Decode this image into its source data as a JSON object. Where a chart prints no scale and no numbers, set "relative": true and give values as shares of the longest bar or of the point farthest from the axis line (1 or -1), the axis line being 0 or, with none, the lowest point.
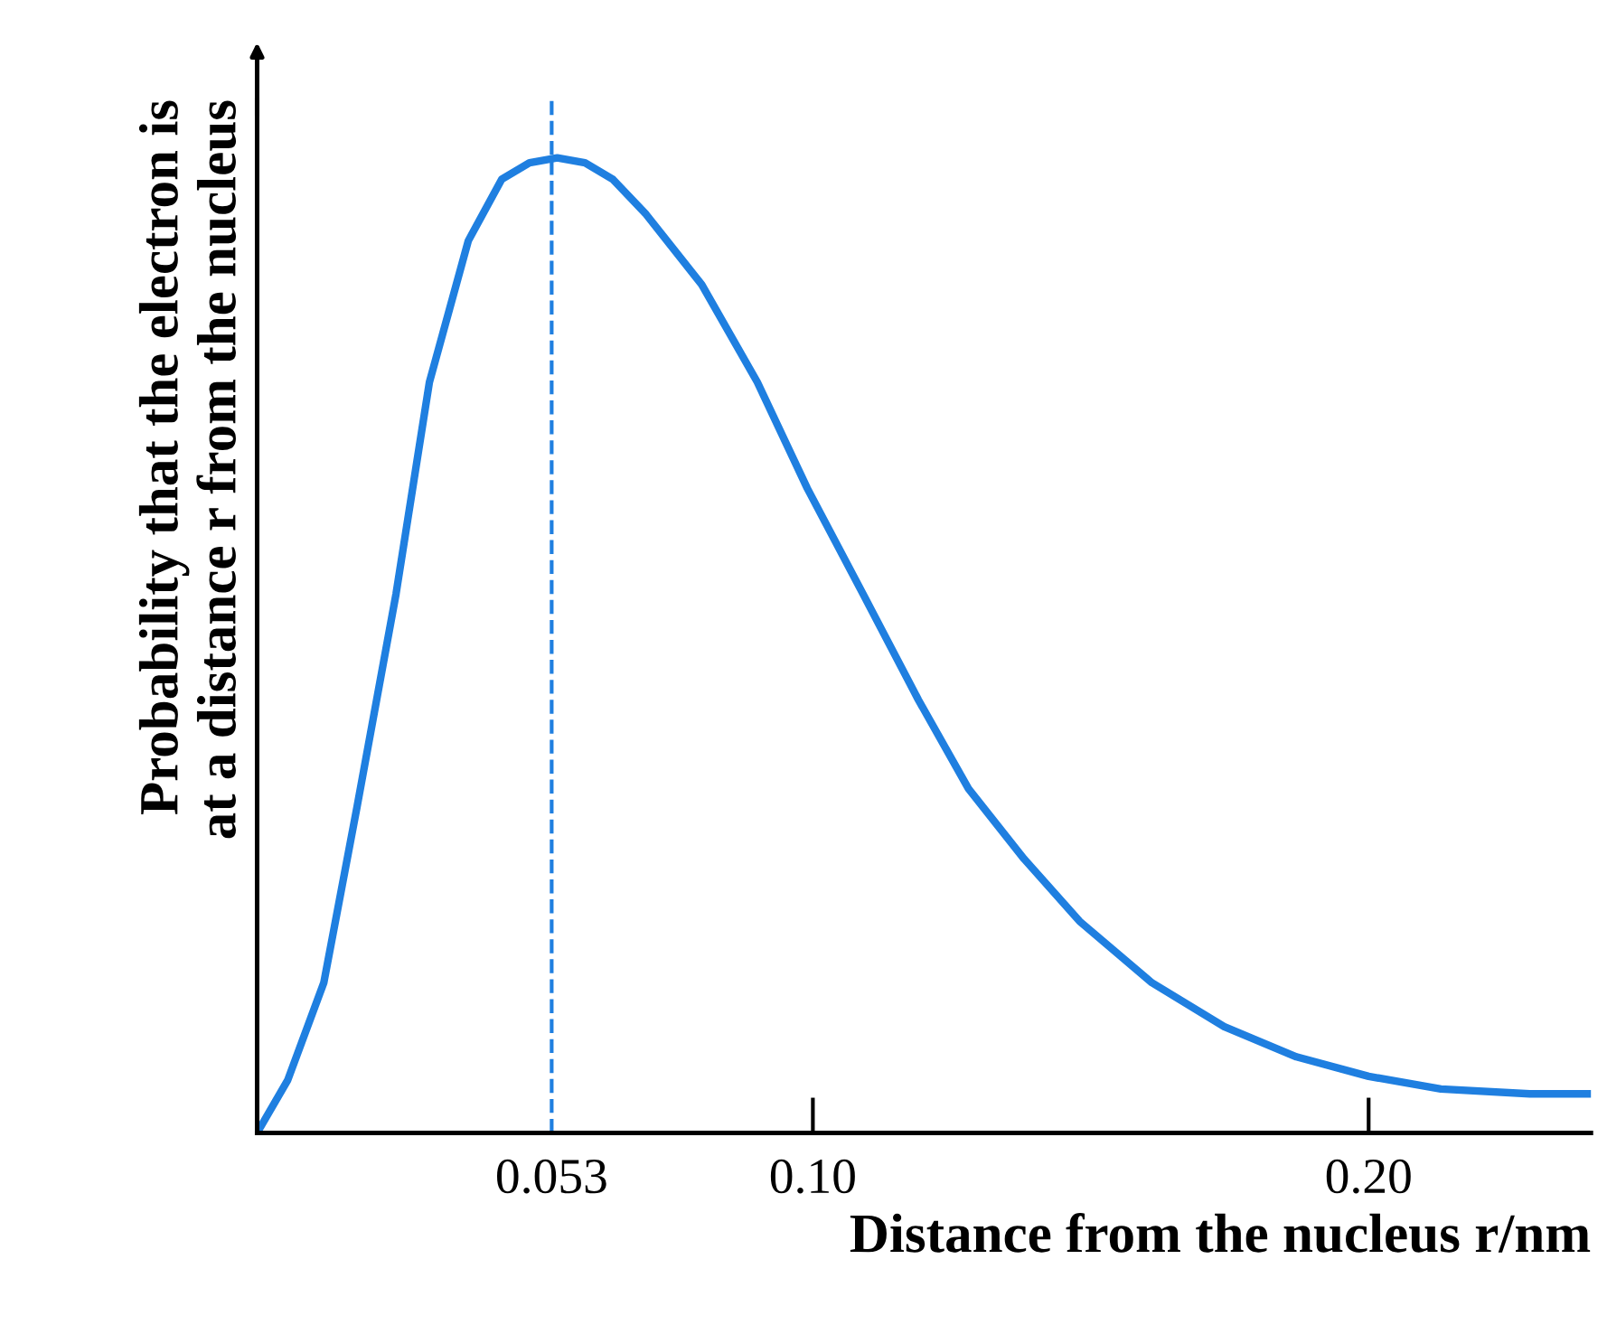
{
  "chart_data": {
    "type": "line",
    "relative": true,
    "xlabel": "Distance from the nucleus r/nm",
    "ylabel": "Probability that the electron is\nat a distance r from the nucleus",
    "x": [
      0,
      0.0055,
      0.012,
      0.018,
      0.025,
      0.031,
      0.038,
      0.044,
      0.049,
      0.054,
      0.059,
      0.064,
      0.07,
      0.08,
      0.09,
      0.099,
      0.109,
      0.119,
      0.128,
      0.138,
      0.148,
      0.161,
      0.174,
      0.187,
      0.2,
      0.213,
      0.229,
      0.24
    ],
    "series": [
      {
        "color": "#1f7fe0",
        "values": [
          0,
          0.054,
          0.154,
          0.335,
          0.553,
          0.77,
          0.915,
          0.978,
          0.995,
          1.0,
          0.995,
          0.978,
          0.942,
          0.87,
          0.77,
          0.661,
          0.553,
          0.444,
          0.353,
          0.281,
          0.217,
          0.154,
          0.109,
          0.078,
          0.058,
          0.045,
          0.04,
          0.04
        ]
      }
    ],
    "xlim": [
      0,
      0.24
    ],
    "xticks": [
      0.053,
      {
        "value": 0.1,
        "label": "0.10"
      },
      {
        "value": 0.2,
        "label": "0.20"
      }
    ],
    "tick_labels": "x",
    "ref_lines": [
      {
        "axis": "x",
        "value": 0.053,
        "label": null,
        "color": "#1f7fe0",
        "line_style": "dashed"
      }
    ],
    "grid": false,
    "legend": false
  }
}
